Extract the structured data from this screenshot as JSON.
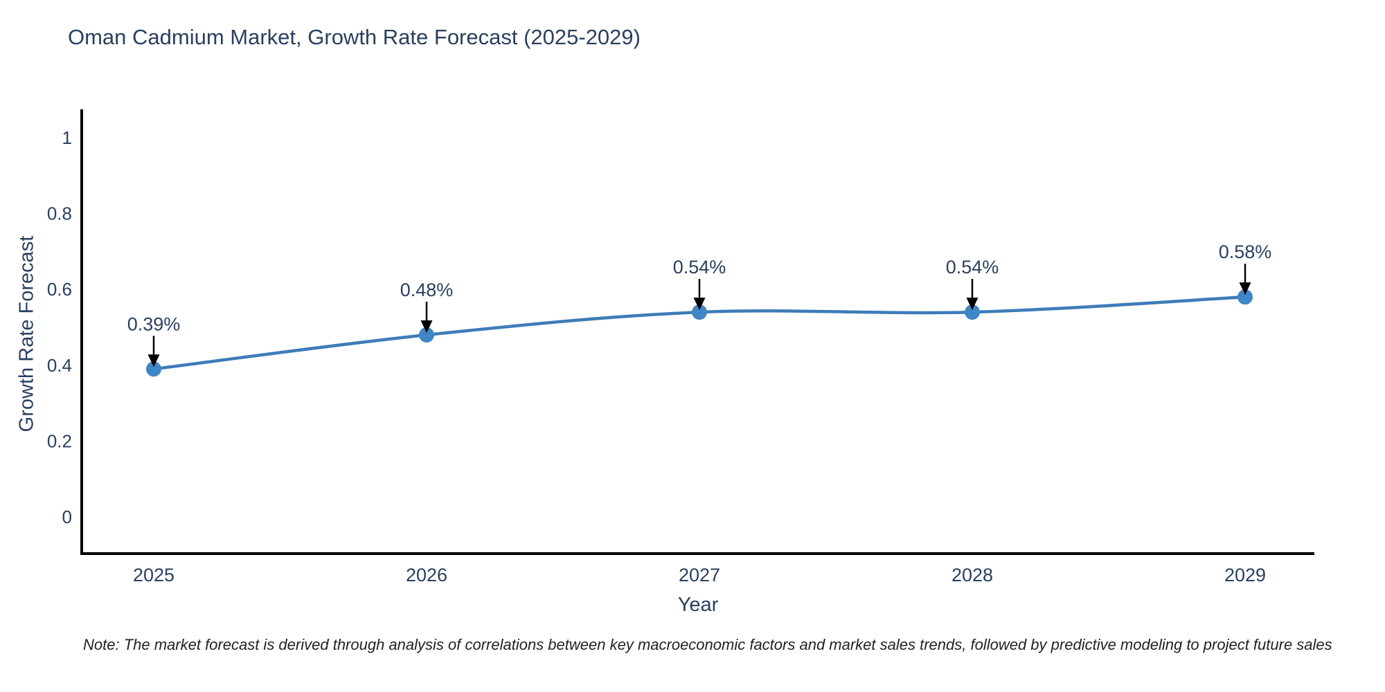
{
  "title": "Oman Cadmium Market, Growth Rate Forecast (2025-2029)",
  "note": "Note: The market forecast is derived through analysis of correlations between key macroeconomic factors and market sales trends, followed by predictive modeling to project future sales",
  "colors": {
    "title_text": "#2a3f5f",
    "tick_text": "#2a3f5f",
    "annotation_text": "#2a3f5f",
    "axis_line": "#000000",
    "series_line": "#3d7cb8",
    "marker_fill": "#3f86c6",
    "arrow": "#000000",
    "note_text": "#222222",
    "background": "#ffffff"
  },
  "chart_data": {
    "type": "line",
    "title": "Oman Cadmium Market, Growth Rate Forecast (2025-2029)",
    "xlabel": "Year",
    "ylabel": "Growth Rate Forecast",
    "x": [
      2025,
      2026,
      2027,
      2028,
      2029
    ],
    "values": [
      0.39,
      0.48,
      0.54,
      0.54,
      0.58
    ],
    "point_labels": [
      "0.39%",
      "0.48%",
      "0.54%",
      "0.54%",
      "0.58%"
    ],
    "xtick_labels": [
      "2025",
      "2026",
      "2027",
      "2028",
      "2029"
    ],
    "ytick_values": [
      0,
      0.2,
      0.4,
      0.6,
      0.8,
      1
    ],
    "ytick_labels": [
      "0",
      "0.2",
      "0.4",
      "0.6",
      "0.8",
      "1"
    ],
    "ylim": [
      -0.1,
      1.07
    ],
    "grid": false,
    "legend_position": "none",
    "line_shape": "spline",
    "annotation_style": "down-arrow"
  }
}
